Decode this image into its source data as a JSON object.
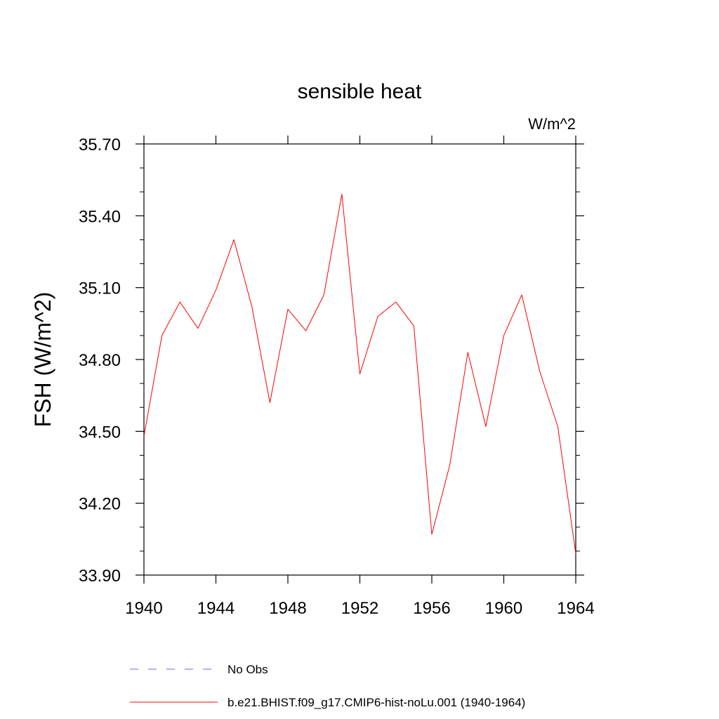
{
  "chart_data": {
    "type": "line",
    "title": "sensible heat",
    "units": "W/m^2",
    "xlabel": "",
    "ylabel": "FSH  (W/m^2)",
    "xlim": [
      1940,
      1964
    ],
    "ylim": [
      33.9,
      35.7
    ],
    "x_ticks": [
      1940,
      1944,
      1948,
      1952,
      1956,
      1960,
      1964
    ],
    "y_ticks": [
      "33.90",
      "34.20",
      "34.50",
      "34.80",
      "35.10",
      "35.40",
      "35.70"
    ],
    "grid": false,
    "legend_position": "bottom",
    "series": [
      {
        "name": "b.e21.BHIST.f09_g17.CMIP6-hist-noLu.001 (1940-1964)",
        "color": "#ff0000",
        "line_style": "solid",
        "x": [
          1940,
          1941,
          1942,
          1943,
          1944,
          1945,
          1946,
          1947,
          1948,
          1949,
          1950,
          1951,
          1952,
          1953,
          1954,
          1955,
          1956,
          1957,
          1958,
          1959,
          1960,
          1961,
          1962,
          1963,
          1964
        ],
        "y": [
          34.48,
          34.9,
          35.04,
          34.93,
          35.09,
          35.3,
          35.02,
          34.62,
          35.01,
          34.92,
          35.07,
          35.49,
          34.74,
          34.98,
          35.04,
          34.94,
          34.07,
          34.36,
          34.83,
          34.52,
          34.9,
          35.07,
          34.75,
          34.52,
          33.99
        ]
      }
    ],
    "legend": [
      {
        "label": "No Obs",
        "color": "#6a6ad8",
        "line_style": "dashed"
      },
      {
        "label": "b.e21.BHIST.f09_g17.CMIP6-hist-noLu.001 (1940-1964)",
        "color": "#ff0000",
        "line_style": "solid"
      }
    ]
  }
}
